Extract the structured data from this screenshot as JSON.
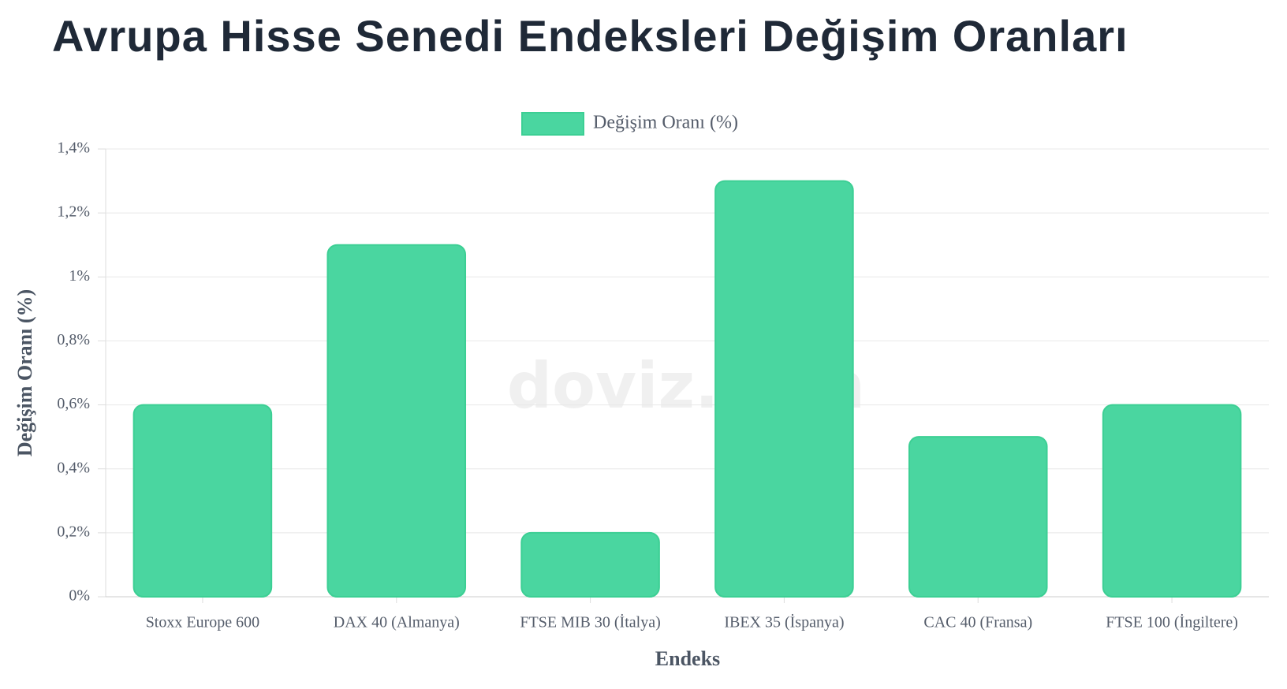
{
  "chart_data": {
    "type": "bar",
    "title": "Avrupa Hisse Senedi Endeksleri Değişim Oranları",
    "watermark": "doviz.com",
    "x_label": "Endeks",
    "y_label": "Değişim Oranı (%)",
    "categories": [
      "Stoxx Europe 600",
      "DAX 40 (Almanya)",
      "FTSE MIB 30 (İtalya)",
      "IBEX 35 (İspanya)",
      "CAC 40 (Fransa)",
      "FTSE 100 (İngiltere)"
    ],
    "series": [
      {
        "name": "Değişim Oranı (%)",
        "color": "#4ad6a0",
        "values": [
          0.6,
          1.1,
          0.2,
          1.3,
          0.5,
          0.6
        ]
      }
    ],
    "ylim": [
      0,
      1.4
    ],
    "yticks": [
      {
        "value": 0,
        "label": "0%"
      },
      {
        "value": 0.2,
        "label": "0,2%"
      },
      {
        "value": 0.4,
        "label": "0,4%"
      },
      {
        "value": 0.6,
        "label": "0,6%"
      },
      {
        "value": 0.8,
        "label": "0,8%"
      },
      {
        "value": 1,
        "label": "1%"
      },
      {
        "value": 1.2,
        "label": "1,2%"
      },
      {
        "value": 1.4,
        "label": "1,4%"
      }
    ],
    "grid": true,
    "legend": "top"
  }
}
